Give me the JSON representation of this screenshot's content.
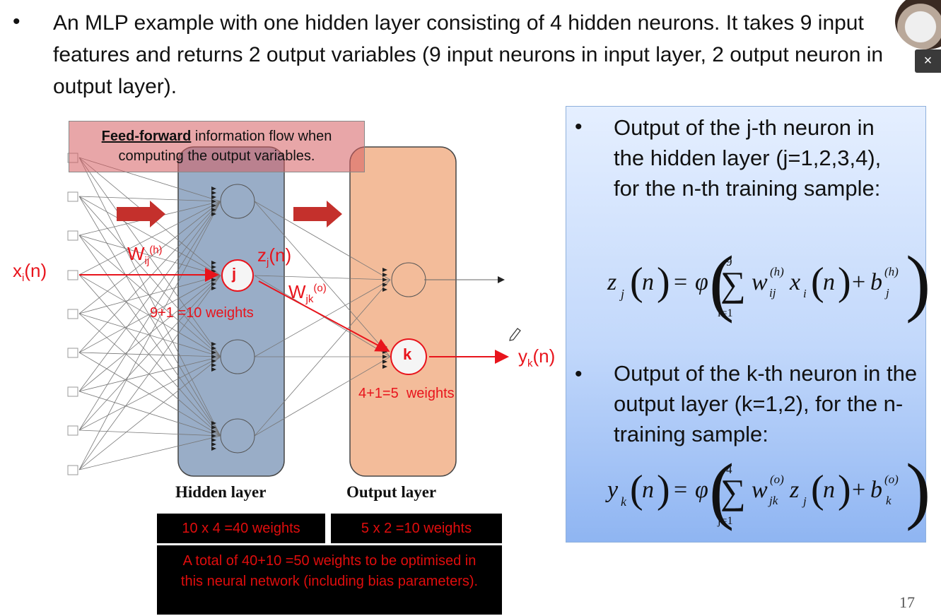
{
  "slide": {
    "bullet_symbol": "•",
    "intro_text": "An MLP example with one hidden layer consisting of 4 hidden neurons. It takes 9 input features and returns 2 output variables (9 input neurons in input layer, 2 output neuron in output layer).",
    "page_number": "17",
    "close_label": "×"
  },
  "diagram": {
    "feedforward_bold": "Feed-forward",
    "feedforward_rest": " information flow when computing the output variables.",
    "input_label_base": "x",
    "input_label_sub": "i",
    "input_label_arg": "(n)",
    "weight_h_base": "W",
    "weight_h_sub": "ij",
    "weight_h_sup": "(h)",
    "z_base": "z",
    "z_sub": "j",
    "z_arg": "(n)",
    "hidden_neuron_label": "j",
    "weight_o_base": "W",
    "weight_o_sub": "jk",
    "weight_o_sup": "(o)",
    "hidden_weights_note": "9+1 =10 weights",
    "output_neuron_label": "k",
    "output_weights_note": "4+1=5  weights",
    "y_base": "y",
    "y_sub": "k",
    "y_arg": "(n)",
    "hidden_layer_title": "Hidden layer",
    "output_layer_title": "Output layer",
    "hidden_total": "10 x 4 =40 weights",
    "output_total": "5 x 2 =10 weights",
    "grand_total": "A total of 40+10 =50 weights to be optimised in this neural network (including bias parameters)."
  },
  "panel": {
    "hidden_bullet": "Output of the j-th neuron in the hidden layer (j=1,2,3,4), for the n-th training sample:",
    "output_bullet": "Output of the k-th neuron in the output layer (k=1,2), for the n-training sample:",
    "eq1": {
      "lhs_var": "z",
      "lhs_sub": "j",
      "n": "n",
      "phi": "φ",
      "sigma": "∑",
      "upper": "9",
      "lower": "i=1",
      "w": "w",
      "w_sup": "(h)",
      "w_sub": "ij",
      "x": "x",
      "x_sub": "i",
      "b": "b",
      "b_sup": "(h)",
      "b_sub": "j"
    },
    "eq2": {
      "lhs_var": "y",
      "lhs_sub": "k",
      "n": "n",
      "phi": "φ",
      "sigma": "∑",
      "upper": "4",
      "lower": "j=1",
      "w": "w",
      "w_sup": "(o)",
      "w_sub": "jk",
      "x": "z",
      "x_sub": "j",
      "b": "b",
      "b_sup": "(o)",
      "b_sub": "k"
    }
  },
  "colors": {
    "accent_red": "#e8141c",
    "hidden_layer_fill": "#8ea5c2",
    "output_layer_fill": "#f2b590",
    "panel_blue": "#a9c6f6"
  }
}
